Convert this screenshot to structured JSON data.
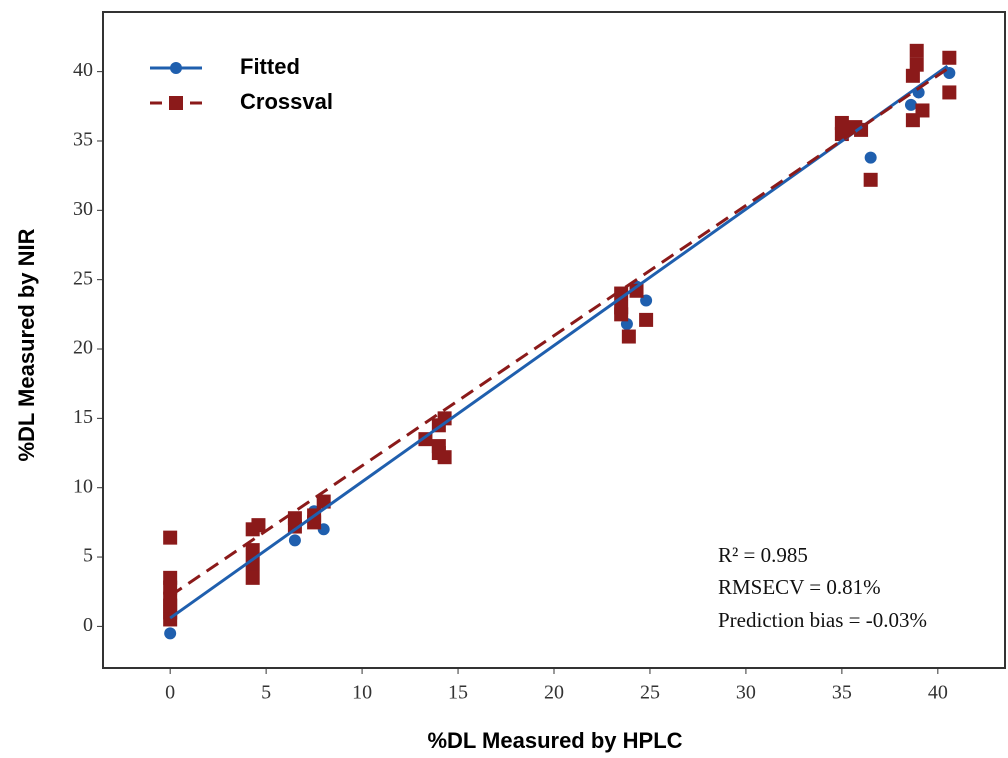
{
  "chart_data": {
    "type": "scatter",
    "x_label": "%DL Measured by HPLC",
    "y_label": "%DL Measured by NIR",
    "xlim": [
      -3.5,
      43.5
    ],
    "ylim": [
      -3,
      44.3
    ],
    "xticks": [
      0,
      5,
      10,
      15,
      20,
      25,
      30,
      35,
      40
    ],
    "yticks": [
      0,
      5,
      10,
      15,
      20,
      25,
      30,
      35,
      40
    ],
    "legend": "upper left",
    "annotations": [
      "R² = 0.985",
      "RMSECV = 0.81%",
      "Prediction bias = -0.03%"
    ],
    "series": [
      {
        "name": "Fitted",
        "color": "#1f5fae",
        "marker": "circle",
        "dashed": false,
        "x": [
          0,
          0,
          0,
          4.3,
          4.3,
          6.5,
          7.5,
          8,
          14.3,
          23.8,
          24.3,
          24.8,
          36.5,
          38.6,
          39,
          40.6
        ],
        "values": [
          -0.5,
          0.5,
          1.5,
          4.0,
          5.0,
          6.2,
          8.3,
          7.0,
          15.0,
          21.8,
          24.5,
          23.5,
          33.8,
          37.6,
          38.5,
          39.9
        ],
        "fit": {
          "x": [
            0,
            40.5
          ],
          "values": [
            0.6,
            40.4
          ]
        }
      },
      {
        "name": "Crossval",
        "color": "#8b1a1a",
        "marker": "square",
        "dashed": true,
        "x": [
          0,
          0,
          0,
          0,
          0,
          0,
          0,
          4.3,
          4.3,
          4.3,
          4.3,
          4.6,
          6.5,
          6.5,
          7.5,
          7.5,
          8,
          13.3,
          14,
          14,
          14,
          14.3,
          14.3,
          23.5,
          23.5,
          23.5,
          23.9,
          24.3,
          24.8,
          35,
          35,
          35.7,
          36,
          36.5,
          38.7,
          38.7,
          38.9,
          38.9,
          39.2,
          40.6,
          40.6
        ],
        "values": [
          6.4,
          3.5,
          2.8,
          2.0,
          1.5,
          1.0,
          0.5,
          7.0,
          5.5,
          4.5,
          3.5,
          7.3,
          7.8,
          7.2,
          8.0,
          7.5,
          9.0,
          13.5,
          12.5,
          14.5,
          13.0,
          12.2,
          15.0,
          24.0,
          23.0,
          22.5,
          20.9,
          24.2,
          22.1,
          36.3,
          35.5,
          36.0,
          35.8,
          32.2,
          39.7,
          36.5,
          41.5,
          40.5,
          37.2,
          41.0,
          38.5
        ],
        "fit": {
          "x": [
            0,
            40.5
          ],
          "values": [
            2.2,
            40.2
          ]
        }
      }
    ]
  }
}
